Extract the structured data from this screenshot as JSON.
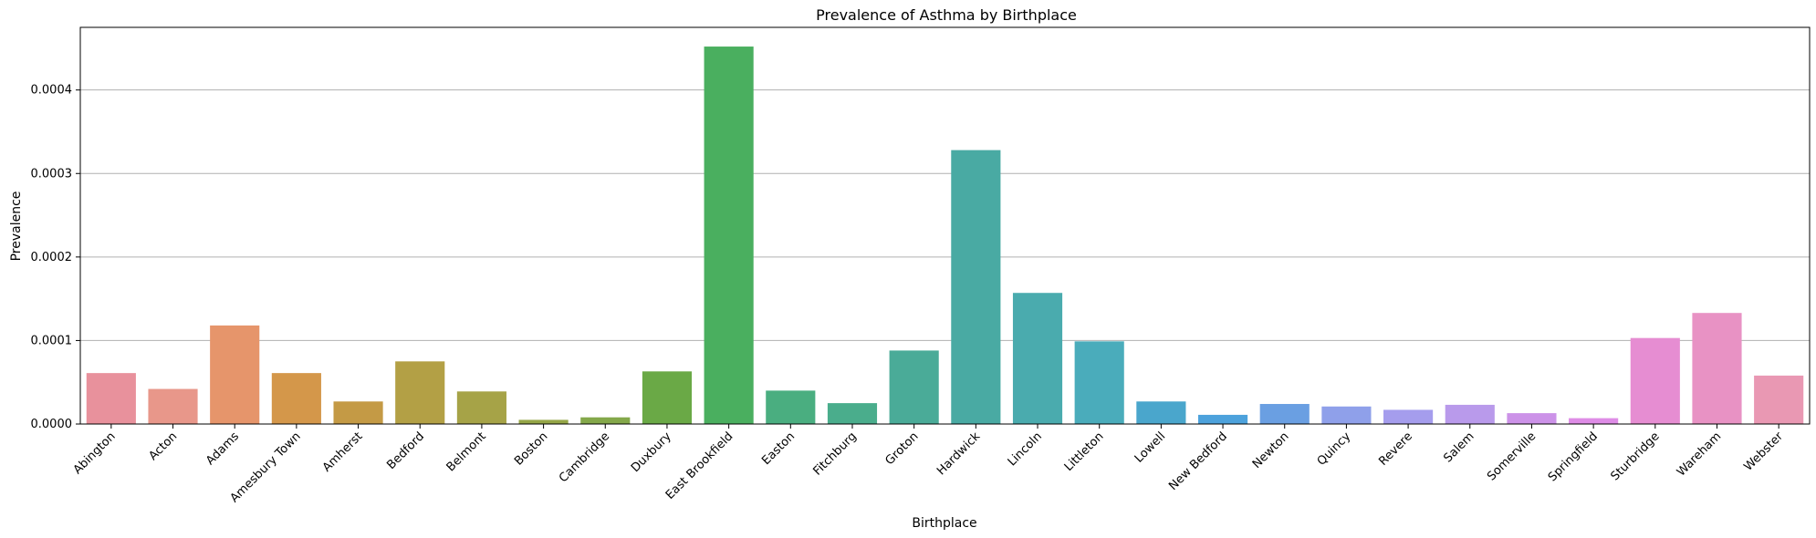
{
  "chart_data": {
    "type": "bar",
    "title": "Prevalence of Asthma by Birthplace",
    "xlabel": "Birthplace",
    "ylabel": "Prevalence",
    "ylim": [
      0,
      0.000475
    ],
    "yticks": [
      "0.0000",
      "0.0001",
      "0.0002",
      "0.0003",
      "0.0004"
    ],
    "ytick_values": [
      0,
      0.0001,
      0.0002,
      0.0003,
      0.0004
    ],
    "grid": "y",
    "categories": [
      "Abington",
      "Acton",
      "Adams",
      "Amesbury Town",
      "Amherst",
      "Bedford",
      "Belmont",
      "Boston",
      "Cambridge",
      "Duxbury",
      "East Brookfield",
      "Easton",
      "Fitchburg",
      "Groton",
      "Hardwick",
      "Lincoln",
      "Littleton",
      "Lowell",
      "New Bedford",
      "Newton",
      "Quincy",
      "Revere",
      "Salem",
      "Somerville",
      "Springfield",
      "Sturbridge",
      "Wareham",
      "Webster"
    ],
    "values": [
      6.1e-05,
      4.2e-05,
      0.000118,
      6.1e-05,
      2.7e-05,
      7.5e-05,
      3.9e-05,
      5e-06,
      8e-06,
      6.3e-05,
      0.000452,
      4e-05,
      2.5e-05,
      8.8e-05,
      0.000328,
      0.000157,
      9.9e-05,
      2.7e-05,
      1.1e-05,
      2.4e-05,
      2.1e-05,
      1.7e-05,
      2.3e-05,
      1.3e-05,
      7e-06,
      0.000103,
      0.000133,
      5.8e-05
    ],
    "colors": [
      "#e8919c",
      "#e8978a",
      "#e6956b",
      "#d4974a",
      "#c49a45",
      "#b3a045",
      "#a6a347",
      "#95a647",
      "#84a84a",
      "#6aa946",
      "#4aaf5f",
      "#4aae80",
      "#4aad8c",
      "#4aab98",
      "#49aaa3",
      "#4aabae",
      "#4aacbb",
      "#4aa6cc",
      "#4da2dc",
      "#6a9fe2",
      "#8fa0ea",
      "#a59ded",
      "#b99aeb",
      "#cc92e8",
      "#de8ce6",
      "#e68dd2",
      "#e892c4",
      "#e998b3"
    ]
  }
}
